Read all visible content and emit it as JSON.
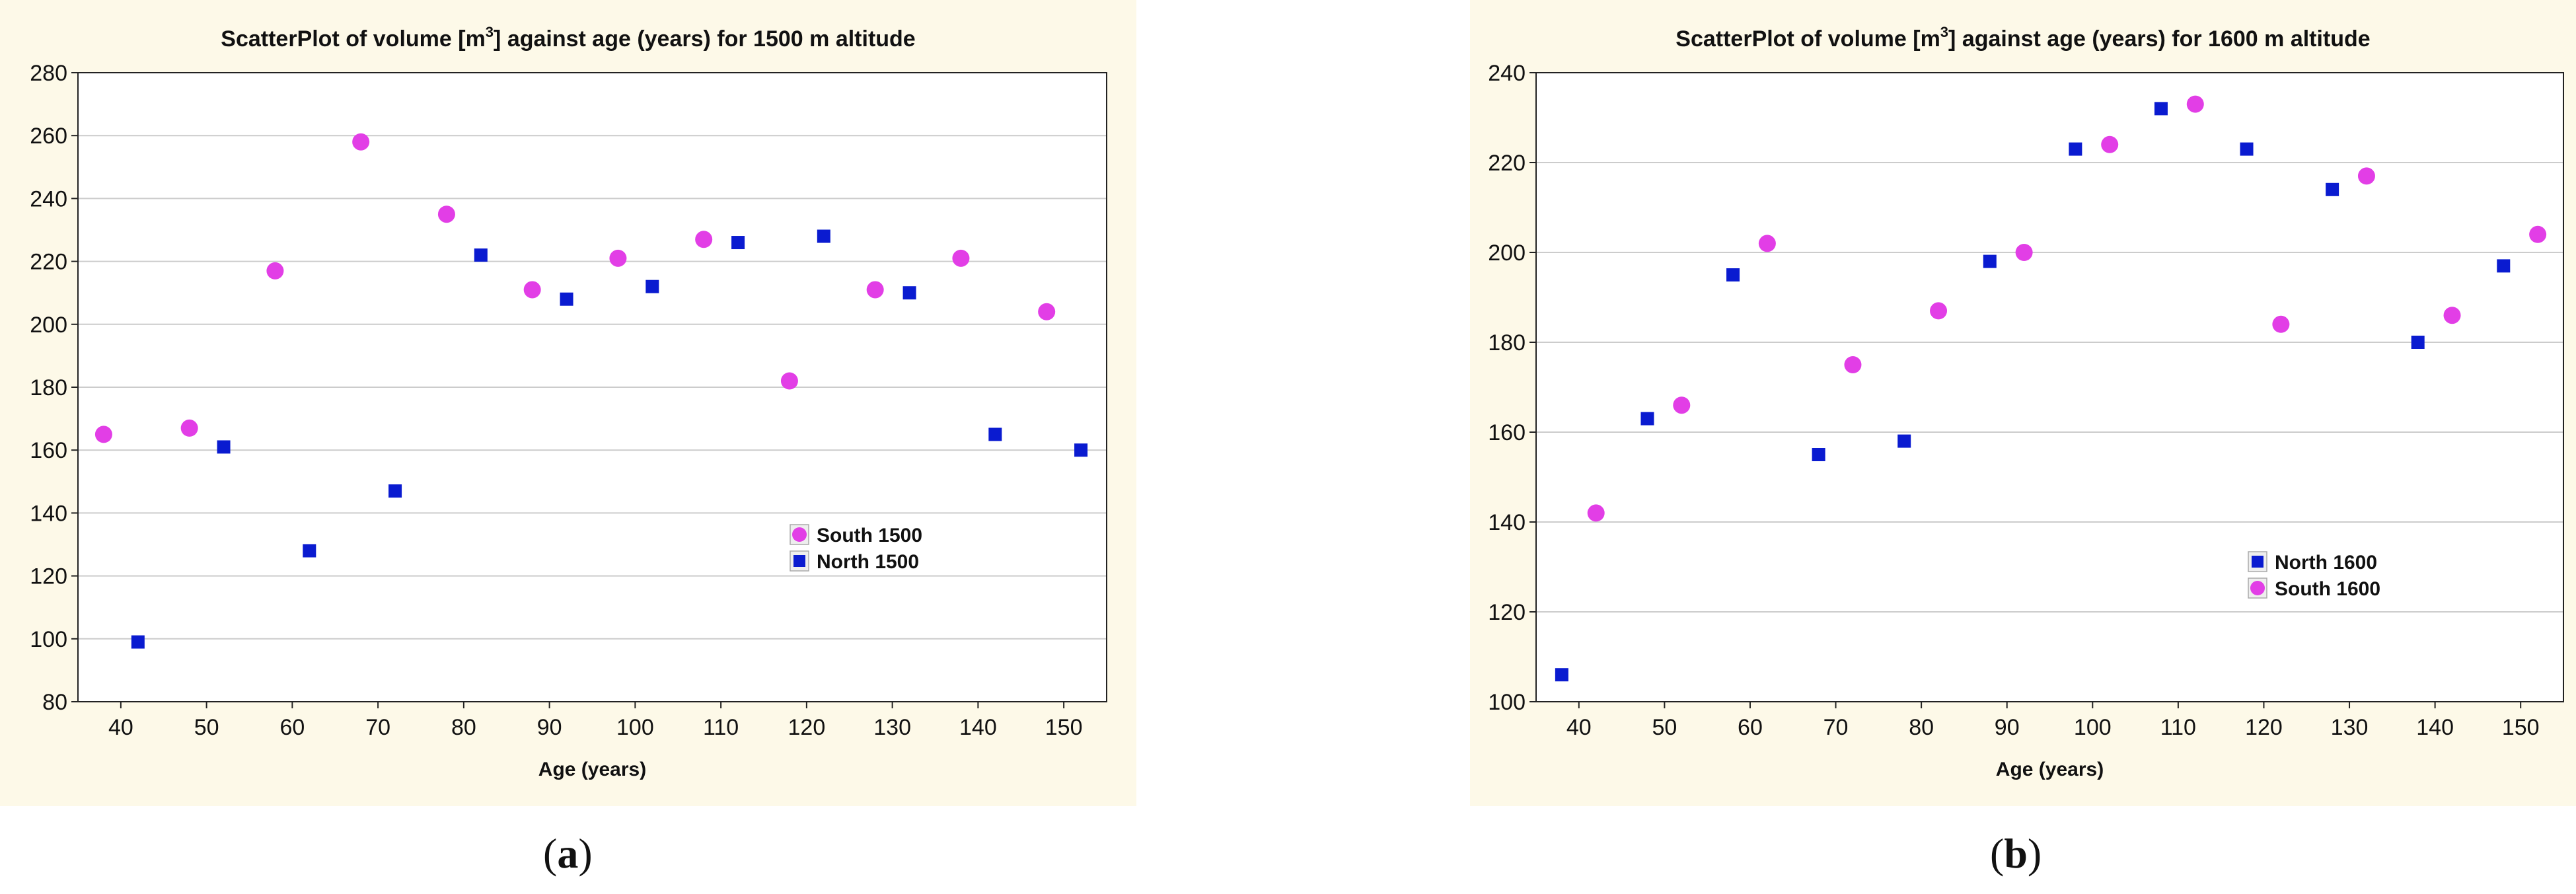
{
  "colors": {
    "south": "#e23ee6",
    "north": "#0a1bd0",
    "panel_bg": "#fdf9e8",
    "plot_bg": "#ffffff",
    "grid": "#cccccc"
  },
  "captions": {
    "a": "a",
    "b": "b"
  },
  "chart_data": [
    {
      "type": "scatter",
      "title_main": "ScatterPlot of volume [m",
      "title_sup": "3",
      "title_rest": "] against age (years) for 1500 m altitude",
      "xlabel": "Age  (years)",
      "ylabel": "",
      "xlim": [
        35,
        155
      ],
      "ylim": [
        80,
        280
      ],
      "xticks": [
        40,
        50,
        60,
        70,
        80,
        90,
        100,
        110,
        120,
        130,
        140,
        150
      ],
      "yticks": [
        80,
        100,
        120,
        140,
        160,
        180,
        200,
        220,
        240,
        260,
        280
      ],
      "grid": true,
      "legend_position": "lower-right",
      "series": [
        {
          "name": "South 1500",
          "marker": "circle",
          "color": "#e23ee6",
          "x": [
            38,
            48,
            58,
            68,
            78,
            88,
            98,
            108,
            118,
            128,
            138,
            148
          ],
          "y": [
            165,
            167,
            217,
            258,
            235,
            211,
            221,
            227,
            182,
            211,
            221,
            204
          ]
        },
        {
          "name": "North 1500",
          "marker": "square",
          "color": "#0a1bd0",
          "x": [
            42,
            52,
            62,
            72,
            82,
            92,
            102,
            112,
            122,
            132,
            142,
            152
          ],
          "y": [
            99,
            161,
            128,
            147,
            222,
            208,
            212,
            226,
            228,
            210,
            165,
            160
          ]
        }
      ]
    },
    {
      "type": "scatter",
      "title_main": "ScatterPlot of volume [m",
      "title_sup": "3",
      "title_rest": "] against age (years) for 1600 m altitude",
      "xlabel": "Age  (years)",
      "ylabel": "",
      "xlim": [
        35,
        155
      ],
      "ylim": [
        100,
        240
      ],
      "xticks": [
        40,
        50,
        60,
        70,
        80,
        90,
        100,
        110,
        120,
        130,
        140,
        150
      ],
      "yticks": [
        100,
        120,
        140,
        160,
        180,
        200,
        220,
        240
      ],
      "grid": true,
      "legend_position": "lower-right",
      "series": [
        {
          "name": "North 1600",
          "marker": "square",
          "color": "#0a1bd0",
          "x": [
            38,
            48,
            58,
            68,
            78,
            88,
            98,
            108,
            118,
            128,
            138,
            148
          ],
          "y": [
            106,
            163,
            195,
            155,
            158,
            198,
            223,
            232,
            223,
            214,
            180,
            197
          ]
        },
        {
          "name": "South 1600",
          "marker": "circle",
          "color": "#e23ee6",
          "x": [
            42,
            52,
            62,
            72,
            82,
            92,
            102,
            112,
            122,
            132,
            142,
            152
          ],
          "y": [
            142,
            166,
            202,
            175,
            187,
            200,
            224,
            233,
            184,
            217,
            186,
            204
          ]
        }
      ]
    }
  ]
}
